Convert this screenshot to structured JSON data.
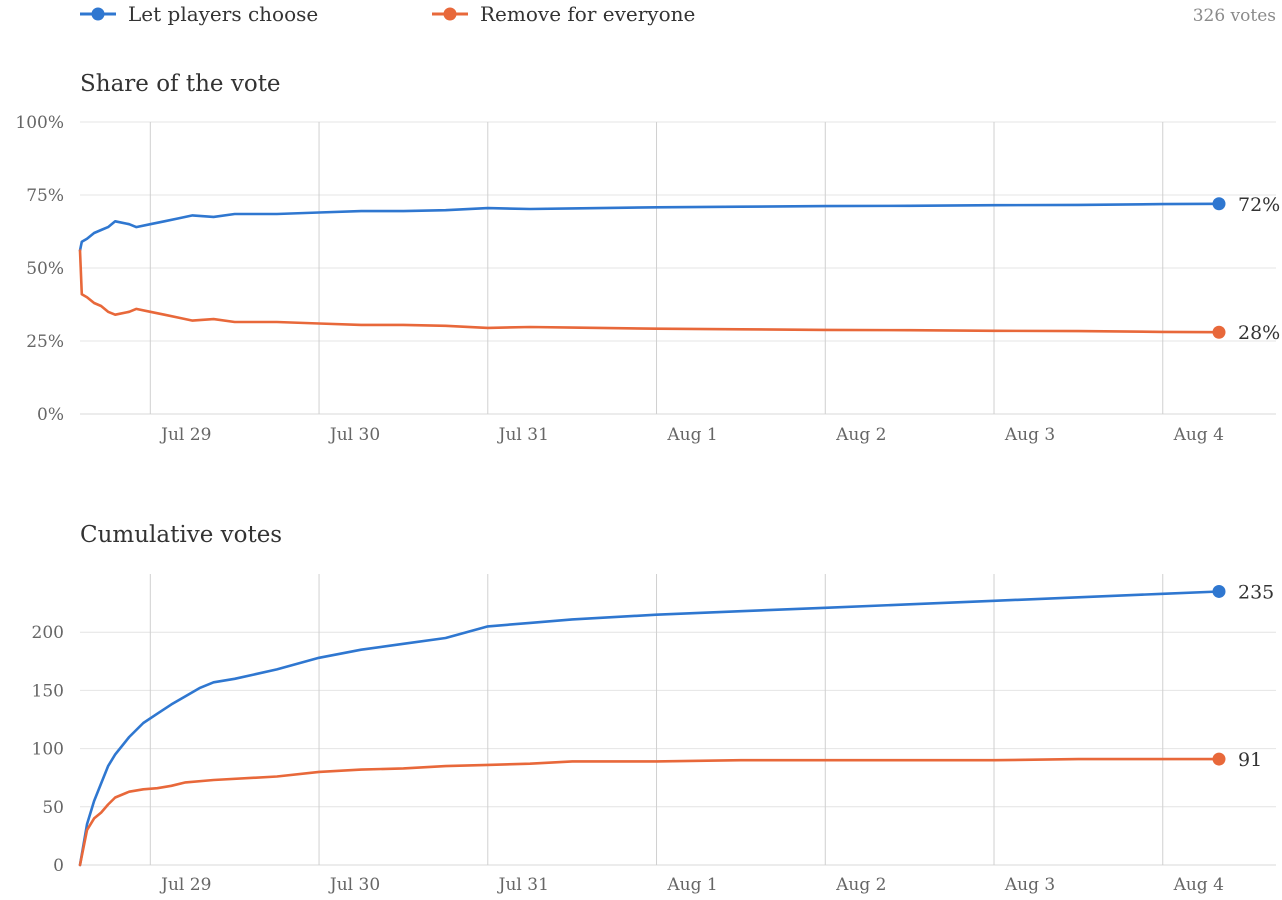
{
  "legend": {
    "items": [
      {
        "label": "Let players choose",
        "color": "#2f77d0"
      },
      {
        "label": "Remove for everyone",
        "color": "#e8683a"
      }
    ],
    "total_votes": "326 votes"
  },
  "chart_data": [
    {
      "type": "line",
      "title": "Share of the vote",
      "xlabel": "",
      "ylabel": "",
      "x_unit": "date",
      "x_range": [
        "Jul 28 14:00",
        "Aug 4 08:00"
      ],
      "xticks": [
        "Jul 29",
        "Jul 30",
        "Jul 31",
        "Aug 1",
        "Aug 2",
        "Aug 3",
        "Aug 4"
      ],
      "yticks": [
        "0%",
        "25%",
        "50%",
        "75%",
        "100%"
      ],
      "ylim": [
        0,
        100
      ],
      "grid": true,
      "series": [
        {
          "name": "Let players choose",
          "color": "#2f77d0",
          "end_label": "72%",
          "points": [
            [
              "Jul 28 14:00",
              56
            ],
            [
              "Jul 28 14:15",
              59
            ],
            [
              "Jul 28 15:00",
              60
            ],
            [
              "Jul 28 16:00",
              62
            ],
            [
              "Jul 28 17:00",
              63
            ],
            [
              "Jul 28 18:00",
              64
            ],
            [
              "Jul 28 19:00",
              66
            ],
            [
              "Jul 28 21:00",
              65
            ],
            [
              "Jul 28 22:00",
              64
            ],
            [
              "Jul 29 00:00",
              65
            ],
            [
              "Jul 29 02:00",
              66
            ],
            [
              "Jul 29 04:00",
              67
            ],
            [
              "Jul 29 06:00",
              68
            ],
            [
              "Jul 29 09:00",
              67.5
            ],
            [
              "Jul 29 12:00",
              68.5
            ],
            [
              "Jul 29 18:00",
              68.5
            ],
            [
              "Jul 30 00:00",
              69
            ],
            [
              "Jul 30 06:00",
              69.5
            ],
            [
              "Jul 30 12:00",
              69.5
            ],
            [
              "Jul 30 18:00",
              69.8
            ],
            [
              "Jul 31 00:00",
              70.5
            ],
            [
              "Jul 31 06:00",
              70.2
            ],
            [
              "Jul 31 12:00",
              70.4
            ],
            [
              "Aug 1 00:00",
              70.8
            ],
            [
              "Aug 1 12:00",
              71
            ],
            [
              "Aug 2 00:00",
              71.2
            ],
            [
              "Aug 2 12:00",
              71.3
            ],
            [
              "Aug 3 00:00",
              71.5
            ],
            [
              "Aug 3 12:00",
              71.6
            ],
            [
              "Aug 4 00:00",
              71.9
            ],
            [
              "Aug 4 08:00",
              72
            ]
          ]
        },
        {
          "name": "Remove for everyone",
          "color": "#e8683a",
          "end_label": "28%",
          "points": [
            [
              "Jul 28 14:00",
              56
            ],
            [
              "Jul 28 14:15",
              41
            ],
            [
              "Jul 28 15:00",
              40
            ],
            [
              "Jul 28 16:00",
              38
            ],
            [
              "Jul 28 17:00",
              37
            ],
            [
              "Jul 28 18:00",
              35
            ],
            [
              "Jul 28 19:00",
              34
            ],
            [
              "Jul 28 21:00",
              35
            ],
            [
              "Jul 28 22:00",
              36
            ],
            [
              "Jul 29 00:00",
              35
            ],
            [
              "Jul 29 02:00",
              34
            ],
            [
              "Jul 29 04:00",
              33
            ],
            [
              "Jul 29 06:00",
              32
            ],
            [
              "Jul 29 09:00",
              32.5
            ],
            [
              "Jul 29 12:00",
              31.5
            ],
            [
              "Jul 29 18:00",
              31.5
            ],
            [
              "Jul 30 00:00",
              31
            ],
            [
              "Jul 30 06:00",
              30.5
            ],
            [
              "Jul 30 12:00",
              30.5
            ],
            [
              "Jul 30 18:00",
              30.2
            ],
            [
              "Jul 31 00:00",
              29.5
            ],
            [
              "Jul 31 06:00",
              29.8
            ],
            [
              "Jul 31 12:00",
              29.6
            ],
            [
              "Aug 1 00:00",
              29.2
            ],
            [
              "Aug 1 12:00",
              29
            ],
            [
              "Aug 2 00:00",
              28.8
            ],
            [
              "Aug 2 12:00",
              28.7
            ],
            [
              "Aug 3 00:00",
              28.5
            ],
            [
              "Aug 3 12:00",
              28.4
            ],
            [
              "Aug 4 00:00",
              28.1
            ],
            [
              "Aug 4 08:00",
              28
            ]
          ]
        }
      ]
    },
    {
      "type": "line",
      "title": "Cumulative votes",
      "xlabel": "",
      "ylabel": "",
      "x_unit": "date",
      "x_range": [
        "Jul 28 14:00",
        "Aug 4 08:00"
      ],
      "xticks": [
        "Jul 29",
        "Jul 30",
        "Jul 31",
        "Aug 1",
        "Aug 2",
        "Aug 3",
        "Aug 4"
      ],
      "yticks": [
        "0",
        "50",
        "100",
        "150",
        "200"
      ],
      "ylim": [
        0,
        250
      ],
      "grid": true,
      "series": [
        {
          "name": "Let players choose",
          "color": "#2f77d0",
          "end_label": "235",
          "points": [
            [
              "Jul 28 14:00",
              0
            ],
            [
              "Jul 28 15:00",
              35
            ],
            [
              "Jul 28 16:00",
              55
            ],
            [
              "Jul 28 17:00",
              70
            ],
            [
              "Jul 28 18:00",
              85
            ],
            [
              "Jul 28 19:00",
              95
            ],
            [
              "Jul 28 21:00",
              110
            ],
            [
              "Jul 28 23:00",
              122
            ],
            [
              "Jul 29 01:00",
              130
            ],
            [
              "Jul 29 03:00",
              138
            ],
            [
              "Jul 29 05:00",
              145
            ],
            [
              "Jul 29 07:00",
              152
            ],
            [
              "Jul 29 09:00",
              157
            ],
            [
              "Jul 29 12:00",
              160
            ],
            [
              "Jul 29 18:00",
              168
            ],
            [
              "Jul 30 00:00",
              178
            ],
            [
              "Jul 30 06:00",
              185
            ],
            [
              "Jul 30 12:00",
              190
            ],
            [
              "Jul 30 18:00",
              195
            ],
            [
              "Jul 31 00:00",
              205
            ],
            [
              "Jul 31 06:00",
              208
            ],
            [
              "Jul 31 12:00",
              211
            ],
            [
              "Aug 1 00:00",
              215
            ],
            [
              "Aug 1 12:00",
              218
            ],
            [
              "Aug 2 00:00",
              221
            ],
            [
              "Aug 2 12:00",
              224
            ],
            [
              "Aug 3 00:00",
              227
            ],
            [
              "Aug 3 12:00",
              230
            ],
            [
              "Aug 4 00:00",
              233
            ],
            [
              "Aug 4 08:00",
              235
            ]
          ]
        },
        {
          "name": "Remove for everyone",
          "color": "#e8683a",
          "end_label": "91",
          "points": [
            [
              "Jul 28 14:00",
              0
            ],
            [
              "Jul 28 15:00",
              30
            ],
            [
              "Jul 28 16:00",
              40
            ],
            [
              "Jul 28 17:00",
              45
            ],
            [
              "Jul 28 18:00",
              52
            ],
            [
              "Jul 28 19:00",
              58
            ],
            [
              "Jul 28 21:00",
              63
            ],
            [
              "Jul 28 23:00",
              65
            ],
            [
              "Jul 29 01:00",
              66
            ],
            [
              "Jul 29 03:00",
              68
            ],
            [
              "Jul 29 05:00",
              71
            ],
            [
              "Jul 29 09:00",
              73
            ],
            [
              "Jul 29 18:00",
              76
            ],
            [
              "Jul 30 00:00",
              80
            ],
            [
              "Jul 30 06:00",
              82
            ],
            [
              "Jul 30 12:00",
              83
            ],
            [
              "Jul 30 18:00",
              85
            ],
            [
              "Jul 31 00:00",
              86
            ],
            [
              "Jul 31 06:00",
              87
            ],
            [
              "Jul 31 12:00",
              89
            ],
            [
              "Aug 1 00:00",
              89
            ],
            [
              "Aug 1 12:00",
              90
            ],
            [
              "Aug 2 00:00",
              90
            ],
            [
              "Aug 2 12:00",
              90
            ],
            [
              "Aug 3 00:00",
              90
            ],
            [
              "Aug 3 12:00",
              91
            ],
            [
              "Aug 4 00:00",
              91
            ],
            [
              "Aug 4 08:00",
              91
            ]
          ]
        }
      ]
    }
  ]
}
